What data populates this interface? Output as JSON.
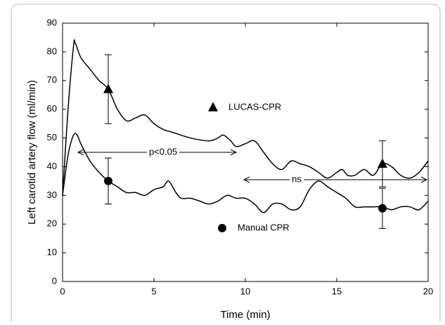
{
  "chart_data": {
    "type": "line",
    "ylabel": "Left carotid artery flow (ml/min)",
    "xlabel": "Time (min)",
    "xlim": [
      0,
      20
    ],
    "ylim": [
      0,
      90
    ],
    "xticks": [
      0,
      5,
      10,
      15,
      20
    ],
    "yticks": [
      0,
      10,
      20,
      30,
      40,
      50,
      60,
      70,
      80,
      90
    ],
    "series": [
      {
        "name": "LUCAS-CPR",
        "color": "#000000",
        "marker": "triangle",
        "x": [
          0,
          0.3,
          0.6,
          0.7,
          1,
          1.5,
          2,
          2.5,
          3,
          3.5,
          4,
          4.5,
          5,
          5.5,
          6,
          7,
          8,
          8.5,
          8.8,
          9.2,
          9.5,
          10,
          10.5,
          11,
          11.5,
          12,
          12.5,
          13,
          13.5,
          14,
          14.5,
          15,
          15.3,
          15.6,
          16,
          16.5,
          17,
          17.5,
          18,
          18.5,
          19,
          19.5,
          20
        ],
        "values": [
          30,
          60,
          82,
          83,
          78,
          74,
          70,
          67,
          60,
          56,
          57,
          58,
          55,
          53,
          52,
          50,
          49,
          50,
          51,
          49,
          47,
          48,
          49,
          45,
          41,
          39,
          42,
          41,
          40,
          38,
          36,
          38,
          39,
          37,
          37,
          39,
          37,
          41,
          40,
          37,
          36,
          38,
          42
        ],
        "points": {
          "x": [
            2.5,
            17.5
          ],
          "values": [
            67,
            41
          ],
          "errors": [
            12,
            8
          ]
        }
      },
      {
        "name": "Manual CPR",
        "color": "#000000",
        "marker": "circle",
        "x": [
          0,
          0.3,
          0.6,
          0.8,
          1,
          1.5,
          2,
          2.5,
          3,
          3.5,
          4,
          4.5,
          5,
          5.5,
          5.8,
          6.2,
          6.5,
          7,
          7.5,
          8,
          8.5,
          9,
          9.5,
          10,
          10.5,
          11,
          11.5,
          12,
          12.5,
          13,
          13.5,
          14,
          14.5,
          15,
          15.5,
          16,
          16.5,
          17,
          17.5,
          18,
          18.5,
          19,
          19.5,
          20
        ],
        "values": [
          30,
          44,
          51,
          51,
          48,
          42,
          38,
          35,
          33,
          31,
          31,
          30,
          32,
          33,
          35,
          31,
          29,
          29,
          28,
          27,
          28,
          30,
          29,
          29,
          27,
          24,
          27,
          27,
          25,
          26,
          32,
          35,
          33,
          31,
          29,
          26,
          26,
          26,
          26,
          25,
          26,
          26,
          25,
          28
        ],
        "points": {
          "x": [
            2.5,
            17.5
          ],
          "values": [
            35,
            25.5
          ],
          "errors": [
            8,
            7
          ]
        }
      }
    ],
    "annotations": [
      "p<0.05",
      "ns"
    ]
  }
}
